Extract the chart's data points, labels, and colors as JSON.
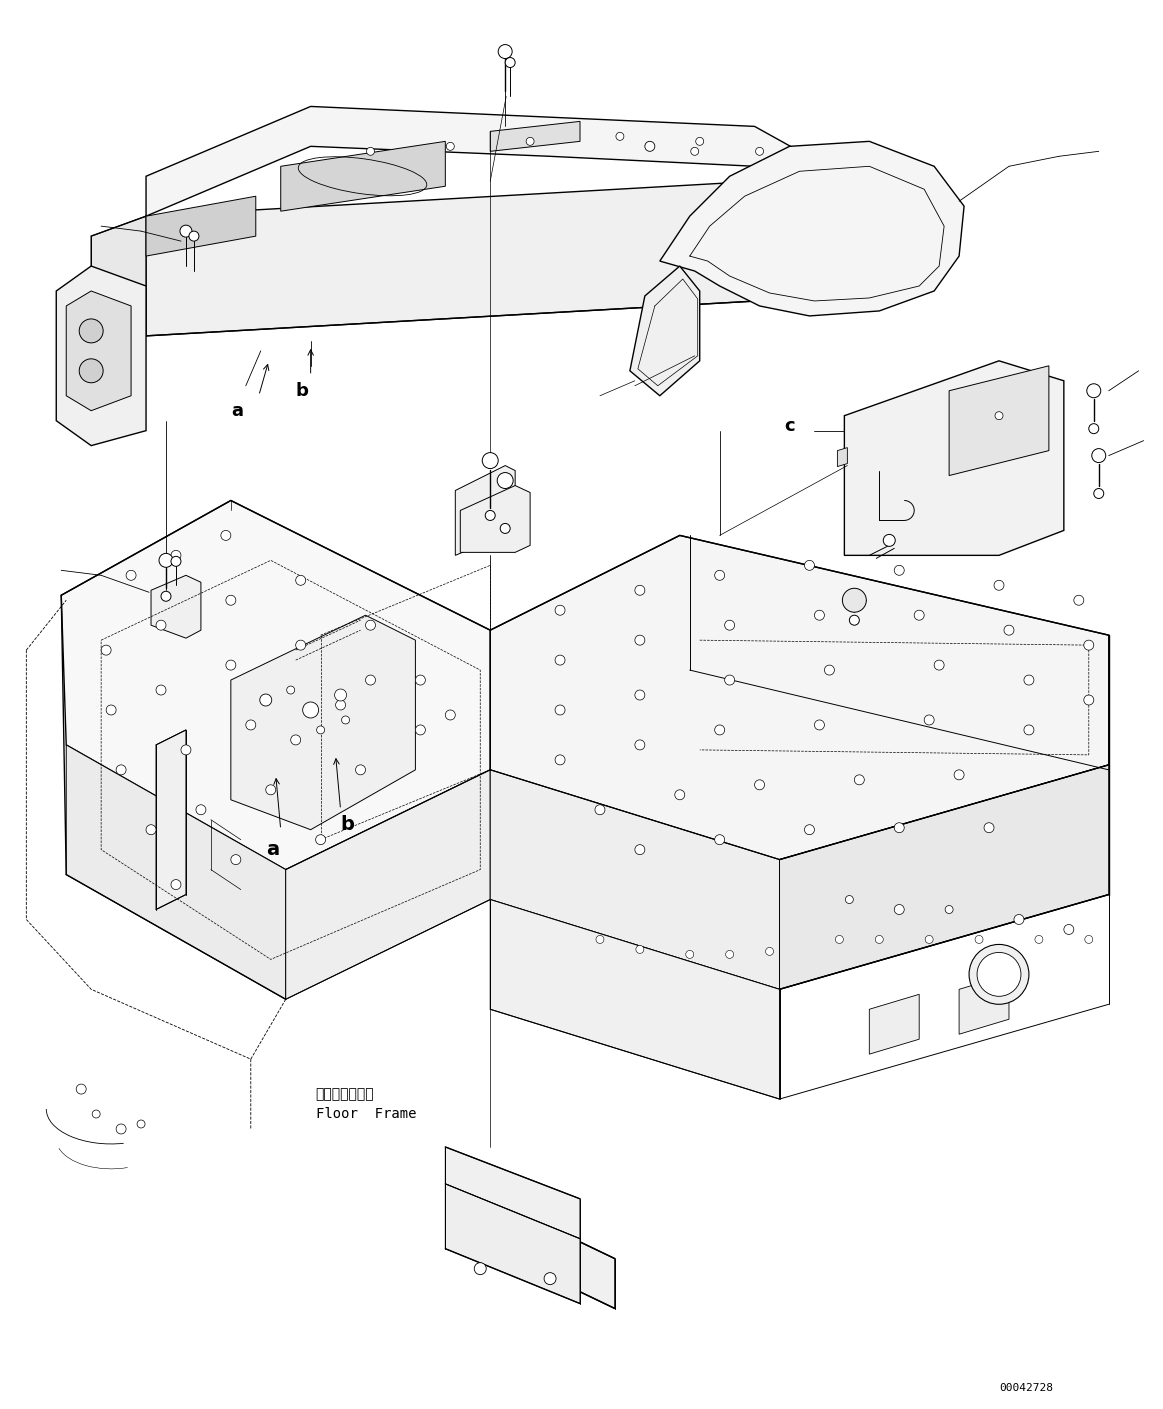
{
  "figure_width": 11.63,
  "figure_height": 14.09,
  "dpi": 100,
  "bg_color": "#ffffff",
  "lc": "#000000",
  "lw": 0.7,
  "lw2": 1.0,
  "part_id": "00042728",
  "label_a": "a",
  "label_b": "b",
  "label_c": "c",
  "label_floor_frame_jp": "フロアフレーム",
  "label_floor_frame_en": "Floor  Frame"
}
